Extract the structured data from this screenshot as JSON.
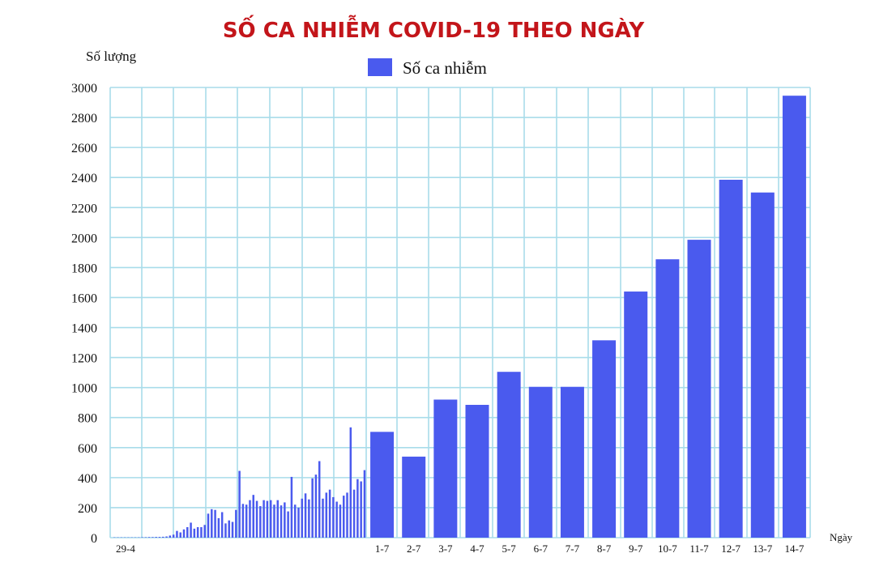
{
  "chart_data": {
    "type": "bar",
    "title": "SỐ CA NHIỄM COVID-19 THEO NGÀY",
    "ylabel": "Số lượng",
    "xlabel": "Ngày",
    "legend": "Số ca nhiễm",
    "legend_position": "top-center",
    "grid": true,
    "ylim": [
      0,
      3000
    ],
    "yticks": [
      0,
      200,
      400,
      600,
      800,
      1000,
      1200,
      1400,
      1600,
      1800,
      2000,
      2200,
      2400,
      2600,
      2800,
      3000
    ],
    "colors": {
      "title": "#c3151a",
      "bar": "#4a5aee",
      "grid": "#a8dcea"
    },
    "early_period": {
      "start_label": "29-4",
      "values": [
        2,
        2,
        2,
        2,
        2,
        2,
        2,
        2,
        3,
        3,
        4,
        4,
        5,
        5,
        6,
        8,
        14,
        20,
        45,
        35,
        55,
        70,
        100,
        60,
        70,
        70,
        85,
        160,
        190,
        185,
        130,
        170,
        95,
        115,
        105,
        185,
        445,
        225,
        220,
        250,
        285,
        245,
        210,
        250,
        245,
        250,
        220,
        250,
        215,
        235,
        175,
        405,
        220,
        200,
        260,
        295,
        255,
        395,
        420,
        510,
        260,
        300,
        320,
        270,
        240,
        220,
        280,
        300,
        735,
        320,
        390,
        375,
        450
      ]
    },
    "categories": [
      "1-7",
      "2-7",
      "3-7",
      "4-7",
      "5-7",
      "6-7",
      "7-7",
      "8-7",
      "9-7",
      "10-7",
      "11-7",
      "12-7",
      "13-7",
      "14-7"
    ],
    "values": [
      705,
      540,
      920,
      885,
      1105,
      1005,
      1005,
      1315,
      1640,
      1855,
      1985,
      2385,
      2300,
      2945
    ]
  }
}
